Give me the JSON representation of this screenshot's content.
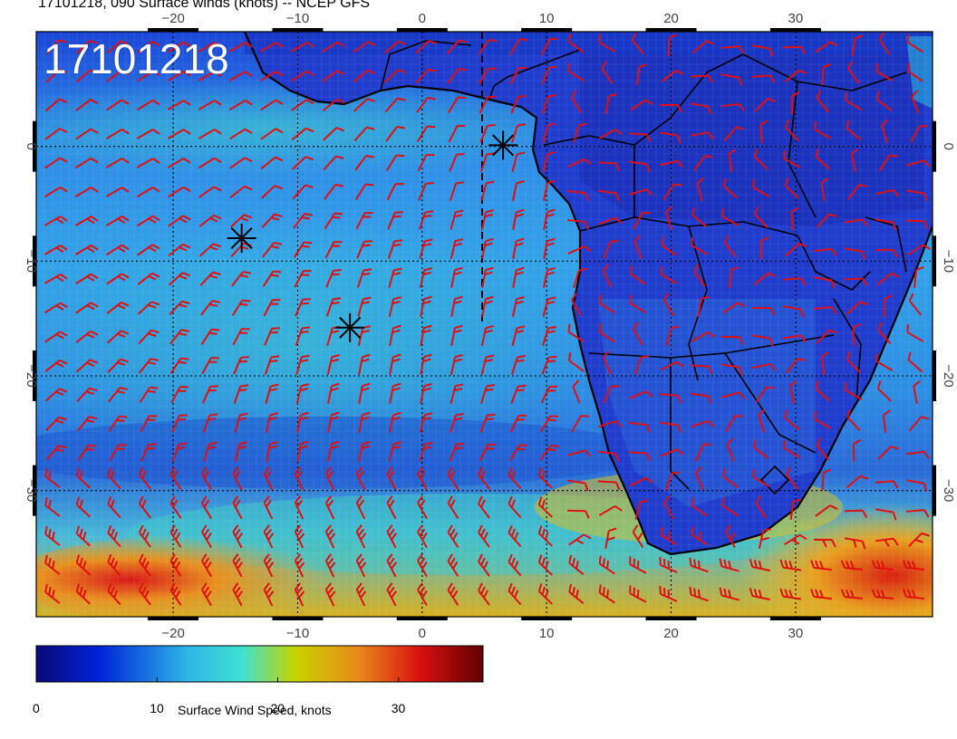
{
  "title": "17101218, 090 Surface winds (knots) -- NCEP GFS",
  "map_label": "17101218",
  "colorbar": {
    "title": "Surface Wind Speed, knots",
    "ticks": [
      {
        "label": "0",
        "value": 0
      },
      {
        "label": "10",
        "value": 10
      },
      {
        "label": "20",
        "value": 20
      },
      {
        "label": "30",
        "value": 30
      }
    ],
    "range": [
      0,
      37
    ],
    "colors": [
      "#0a0a78",
      "#0022d8",
      "#2fb6e8",
      "#3de0d0",
      "#c8d400",
      "#e88a1a",
      "#d81010",
      "#600000"
    ]
  },
  "axes": {
    "lon_ticks": [
      -20,
      -10,
      0,
      10,
      20,
      30
    ],
    "lon_labels": [
      "−20",
      "−10",
      "0",
      "10",
      "20",
      "30"
    ],
    "lat_ticks": [
      0,
      -10,
      -20,
      -30
    ],
    "lat_labels": [
      "0",
      "−10",
      "−20",
      "−30"
    ],
    "lon_range": [
      -31,
      41
    ],
    "lat_range": [
      -41,
      10
    ]
  },
  "markers": [
    {
      "name": "star-marker-1",
      "lon": 6.5,
      "lat": 0.1
    },
    {
      "name": "star-marker-2",
      "lon": -14.5,
      "lat": -8.0
    },
    {
      "name": "star-marker-3",
      "lon": -5.8,
      "lat": -15.8
    }
  ],
  "colors": {
    "barb": "#e01010",
    "coast": "#000000",
    "ocean_base": "#2f8fe6",
    "land_base": "#1f36c8"
  }
}
